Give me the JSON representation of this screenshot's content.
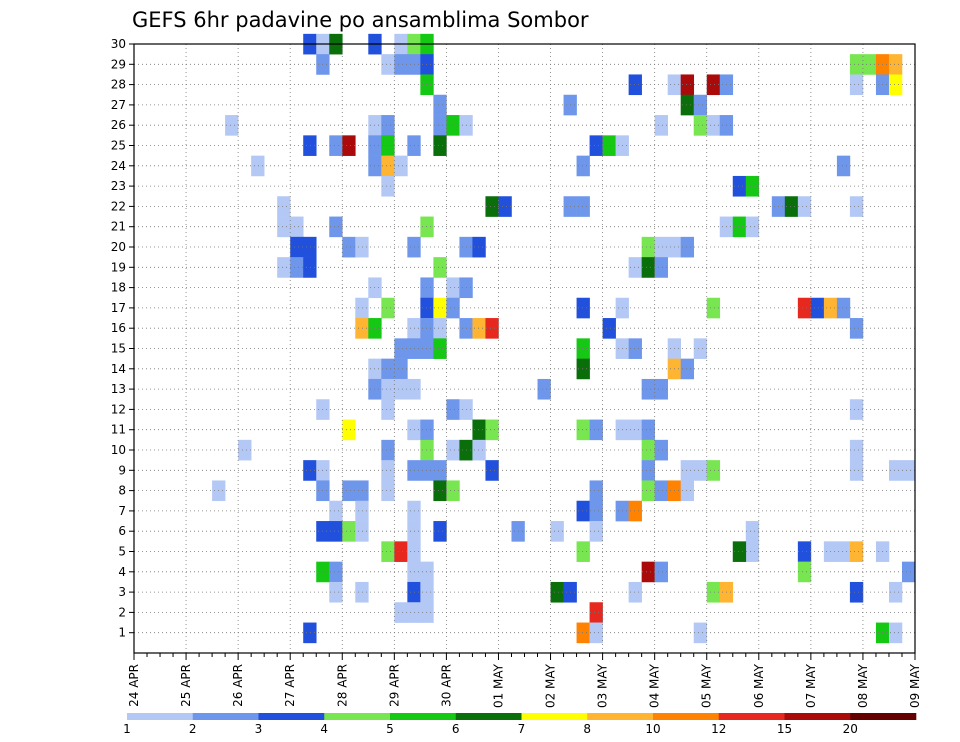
{
  "chart_data": {
    "type": "heatmap",
    "title": "GEFS 6hr padavine po ansamblima Sombor",
    "xlabel": "",
    "ylabel": "",
    "y_ticks": [
      "1",
      "2",
      "3",
      "4",
      "5",
      "6",
      "7",
      "8",
      "9",
      "10",
      "11",
      "12",
      "13",
      "14",
      "15",
      "16",
      "17",
      "18",
      "19",
      "20",
      "21",
      "22",
      "23",
      "24",
      "25",
      "26",
      "27",
      "28",
      "29",
      "30"
    ],
    "x_ticks": [
      "24 APR",
      "25 APR",
      "26 APR",
      "27 APR",
      "28 APR",
      "29 APR",
      "30 APR",
      "01 MAY",
      "02 MAY",
      "03 MAY",
      "04 MAY",
      "05 MAY",
      "06 MAY",
      "07 MAY",
      "08 MAY",
      "09 MAY"
    ],
    "x_range_days": [
      0,
      15
    ],
    "y_range": [
      0,
      30
    ],
    "time_step_days": 0.25,
    "grid": true,
    "colorbar": {
      "placement": "bottom",
      "labels": [
        "1",
        "2",
        "3",
        "4",
        "5",
        "6",
        "7",
        "8",
        "10",
        "12",
        "15",
        "20"
      ],
      "colors": [
        "#b4c8f5",
        "#6e96eb",
        "#2050dc",
        "#78e650",
        "#14c814",
        "#0a6e0a",
        "#ffff00",
        "#ffb432",
        "#ff8200",
        "#e6281e",
        "#aa0a0a",
        "#640000"
      ]
    },
    "cells_note": "each cell: [member, x_day_offset, color_index]",
    "cells": [
      [
        30,
        3.25,
        2
      ],
      [
        30,
        3.5,
        0
      ],
      [
        30,
        3.75,
        5
      ],
      [
        30,
        4.5,
        2
      ],
      [
        30,
        5.0,
        0
      ],
      [
        30,
        5.25,
        3
      ],
      [
        30,
        5.5,
        4
      ],
      [
        29,
        3.5,
        1
      ],
      [
        29,
        4.75,
        0
      ],
      [
        29,
        5.0,
        1
      ],
      [
        29,
        5.25,
        1
      ],
      [
        29,
        5.5,
        2
      ],
      [
        29,
        13.75,
        3
      ],
      [
        29,
        14.0,
        3
      ],
      [
        29,
        14.25,
        8
      ],
      [
        29,
        14.5,
        7
      ],
      [
        28,
        5.5,
        4
      ],
      [
        28,
        9.5,
        2
      ],
      [
        28,
        10.25,
        0
      ],
      [
        28,
        10.5,
        10
      ],
      [
        28,
        11.0,
        10
      ],
      [
        28,
        11.25,
        1
      ],
      [
        28,
        13.75,
        0
      ],
      [
        28,
        14.25,
        1
      ],
      [
        28,
        14.5,
        6
      ],
      [
        27,
        5.75,
        1
      ],
      [
        27,
        8.25,
        1
      ],
      [
        27,
        10.5,
        5
      ],
      [
        27,
        10.75,
        1
      ],
      [
        26,
        1.75,
        0
      ],
      [
        26,
        4.5,
        0
      ],
      [
        26,
        4.75,
        1
      ],
      [
        26,
        5.75,
        1
      ],
      [
        26,
        6.0,
        4
      ],
      [
        26,
        6.25,
        0
      ],
      [
        26,
        10.0,
        0
      ],
      [
        26,
        10.75,
        3
      ],
      [
        26,
        11.0,
        0
      ],
      [
        26,
        11.25,
        1
      ],
      [
        25,
        3.25,
        2
      ],
      [
        25,
        3.75,
        1
      ],
      [
        25,
        4.0,
        10
      ],
      [
        25,
        4.5,
        1
      ],
      [
        25,
        4.75,
        4
      ],
      [
        25,
        5.25,
        1
      ],
      [
        25,
        5.75,
        5
      ],
      [
        25,
        8.75,
        2
      ],
      [
        25,
        9.0,
        4
      ],
      [
        25,
        9.25,
        0
      ],
      [
        24,
        2.25,
        0
      ],
      [
        24,
        4.5,
        1
      ],
      [
        24,
        4.75,
        7
      ],
      [
        24,
        5.0,
        0
      ],
      [
        24,
        8.5,
        1
      ],
      [
        24,
        13.5,
        1
      ],
      [
        23,
        4.75,
        0
      ],
      [
        23,
        11.5,
        2
      ],
      [
        23,
        11.75,
        4
      ],
      [
        22,
        2.75,
        0
      ],
      [
        22,
        6.75,
        5
      ],
      [
        22,
        7.0,
        2
      ],
      [
        22,
        8.25,
        1
      ],
      [
        22,
        8.5,
        1
      ],
      [
        22,
        12.25,
        1
      ],
      [
        22,
        12.5,
        5
      ],
      [
        22,
        12.75,
        0
      ],
      [
        22,
        13.75,
        0
      ],
      [
        21,
        2.75,
        0
      ],
      [
        21,
        3.0,
        0
      ],
      [
        21,
        3.75,
        1
      ],
      [
        21,
        5.5,
        3
      ],
      [
        21,
        11.25,
        0
      ],
      [
        21,
        11.5,
        4
      ],
      [
        21,
        11.75,
        0
      ],
      [
        20,
        3.0,
        2
      ],
      [
        20,
        3.25,
        2
      ],
      [
        20,
        4.0,
        1
      ],
      [
        20,
        4.25,
        0
      ],
      [
        20,
        5.25,
        1
      ],
      [
        20,
        6.25,
        1
      ],
      [
        20,
        6.5,
        2
      ],
      [
        20,
        9.75,
        3
      ],
      [
        20,
        10.0,
        0
      ],
      [
        20,
        10.25,
        0
      ],
      [
        20,
        10.5,
        1
      ],
      [
        19,
        2.75,
        0
      ],
      [
        19,
        3.0,
        1
      ],
      [
        19,
        3.25,
        2
      ],
      [
        19,
        5.75,
        3
      ],
      [
        19,
        9.5,
        0
      ],
      [
        19,
        9.75,
        5
      ],
      [
        19,
        10.0,
        1
      ],
      [
        18,
        4.5,
        0
      ],
      [
        18,
        5.5,
        1
      ],
      [
        18,
        6.0,
        0
      ],
      [
        18,
        6.25,
        1
      ],
      [
        17,
        4.25,
        0
      ],
      [
        17,
        4.75,
        3
      ],
      [
        17,
        5.5,
        2
      ],
      [
        17,
        5.75,
        6
      ],
      [
        17,
        6.0,
        1
      ],
      [
        17,
        8.5,
        2
      ],
      [
        17,
        9.25,
        0
      ],
      [
        17,
        11.0,
        3
      ],
      [
        17,
        12.75,
        9
      ],
      [
        17,
        13.0,
        2
      ],
      [
        17,
        13.25,
        7
      ],
      [
        17,
        13.5,
        1
      ],
      [
        16,
        4.25,
        7
      ],
      [
        16,
        4.5,
        4
      ],
      [
        16,
        5.25,
        0
      ],
      [
        16,
        5.5,
        1
      ],
      [
        16,
        5.75,
        0
      ],
      [
        16,
        6.25,
        1
      ],
      [
        16,
        6.5,
        7
      ],
      [
        16,
        6.75,
        9
      ],
      [
        16,
        9.0,
        2
      ],
      [
        16,
        13.75,
        1
      ],
      [
        15,
        5.0,
        1
      ],
      [
        15,
        5.25,
        1
      ],
      [
        15,
        5.5,
        1
      ],
      [
        15,
        5.75,
        4
      ],
      [
        15,
        8.5,
        4
      ],
      [
        15,
        9.25,
        0
      ],
      [
        15,
        9.5,
        1
      ],
      [
        15,
        10.25,
        0
      ],
      [
        15,
        10.75,
        0
      ],
      [
        14,
        4.5,
        0
      ],
      [
        14,
        4.75,
        1
      ],
      [
        14,
        5.0,
        1
      ],
      [
        14,
        8.5,
        5
      ],
      [
        14,
        10.25,
        7
      ],
      [
        14,
        10.5,
        1
      ],
      [
        13,
        4.5,
        1
      ],
      [
        13,
        4.75,
        0
      ],
      [
        13,
        5.0,
        0
      ],
      [
        13,
        5.25,
        0
      ],
      [
        13,
        7.75,
        1
      ],
      [
        13,
        9.75,
        1
      ],
      [
        13,
        10.0,
        1
      ],
      [
        12,
        3.5,
        0
      ],
      [
        12,
        4.75,
        0
      ],
      [
        12,
        6.0,
        1
      ],
      [
        12,
        6.25,
        0
      ],
      [
        12,
        13.75,
        0
      ],
      [
        11,
        4.0,
        6
      ],
      [
        11,
        5.25,
        0
      ],
      [
        11,
        5.5,
        1
      ],
      [
        11,
        6.5,
        5
      ],
      [
        11,
        6.75,
        3
      ],
      [
        11,
        8.5,
        3
      ],
      [
        11,
        8.75,
        1
      ],
      [
        11,
        9.25,
        0
      ],
      [
        11,
        9.5,
        0
      ],
      [
        11,
        9.75,
        1
      ],
      [
        10,
        2.0,
        0
      ],
      [
        10,
        4.75,
        1
      ],
      [
        10,
        5.5,
        3
      ],
      [
        10,
        6.0,
        0
      ],
      [
        10,
        6.25,
        5
      ],
      [
        10,
        6.5,
        0
      ],
      [
        10,
        9.75,
        3
      ],
      [
        10,
        10.0,
        1
      ],
      [
        10,
        13.75,
        0
      ],
      [
        9,
        3.25,
        2
      ],
      [
        9,
        3.5,
        0
      ],
      [
        9,
        4.75,
        0
      ],
      [
        9,
        5.25,
        1
      ],
      [
        9,
        5.5,
        1
      ],
      [
        9,
        5.75,
        1
      ],
      [
        9,
        6.75,
        2
      ],
      [
        9,
        9.75,
        1
      ],
      [
        9,
        10.5,
        0
      ],
      [
        9,
        10.75,
        0
      ],
      [
        9,
        11.0,
        3
      ],
      [
        9,
        13.75,
        0
      ],
      [
        9,
        14.5,
        0
      ],
      [
        9,
        14.75,
        0
      ],
      [
        8,
        1.5,
        0
      ],
      [
        8,
        3.5,
        1
      ],
      [
        8,
        4.0,
        1
      ],
      [
        8,
        4.25,
        1
      ],
      [
        8,
        4.75,
        0
      ],
      [
        8,
        5.75,
        5
      ],
      [
        8,
        6.0,
        3
      ],
      [
        8,
        8.75,
        1
      ],
      [
        8,
        9.75,
        3
      ],
      [
        8,
        10.0,
        1
      ],
      [
        8,
        10.25,
        8
      ],
      [
        8,
        10.5,
        0
      ],
      [
        7,
        3.75,
        0
      ],
      [
        7,
        4.25,
        0
      ],
      [
        7,
        5.25,
        0
      ],
      [
        7,
        8.5,
        2
      ],
      [
        7,
        8.75,
        1
      ],
      [
        7,
        9.25,
        1
      ],
      [
        7,
        9.5,
        8
      ],
      [
        6,
        3.5,
        2
      ],
      [
        6,
        3.75,
        2
      ],
      [
        6,
        4.0,
        3
      ],
      [
        6,
        4.25,
        0
      ],
      [
        6,
        5.25,
        0
      ],
      [
        6,
        5.75,
        2
      ],
      [
        6,
        7.25,
        1
      ],
      [
        6,
        8.0,
        0
      ],
      [
        6,
        8.75,
        0
      ],
      [
        6,
        11.75,
        0
      ],
      [
        5,
        11.75,
        0
      ],
      [
        5,
        4.75,
        3
      ],
      [
        5,
        5.0,
        9
      ],
      [
        5,
        5.25,
        0
      ],
      [
        5,
        8.5,
        3
      ],
      [
        5,
        11.5,
        5
      ],
      [
        5,
        12.75,
        2
      ],
      [
        5,
        13.25,
        0
      ],
      [
        5,
        13.5,
        0
      ],
      [
        5,
        13.75,
        7
      ],
      [
        5,
        14.25,
        0
      ],
      [
        4,
        3.5,
        4
      ],
      [
        4,
        3.75,
        1
      ],
      [
        4,
        5.25,
        0
      ],
      [
        4,
        5.5,
        0
      ],
      [
        4,
        9.75,
        10
      ],
      [
        4,
        10.0,
        1
      ],
      [
        4,
        12.75,
        3
      ],
      [
        4,
        14.75,
        1
      ],
      [
        3,
        3.75,
        0
      ],
      [
        3,
        4.25,
        0
      ],
      [
        3,
        5.25,
        2
      ],
      [
        3,
        5.5,
        0
      ],
      [
        3,
        8.0,
        5
      ],
      [
        3,
        8.25,
        2
      ],
      [
        3,
        9.5,
        0
      ],
      [
        3,
        11.0,
        3
      ],
      [
        3,
        11.25,
        7
      ],
      [
        3,
        13.75,
        2
      ],
      [
        3,
        14.5,
        0
      ],
      [
        2,
        5.0,
        0
      ],
      [
        2,
        5.25,
        0
      ],
      [
        2,
        5.5,
        0
      ],
      [
        2,
        8.75,
        9
      ],
      [
        1,
        3.25,
        2
      ],
      [
        1,
        8.5,
        8
      ],
      [
        1,
        8.75,
        0
      ],
      [
        1,
        10.75,
        0
      ],
      [
        1,
        14.25,
        4
      ],
      [
        1,
        14.5,
        0
      ]
    ]
  }
}
